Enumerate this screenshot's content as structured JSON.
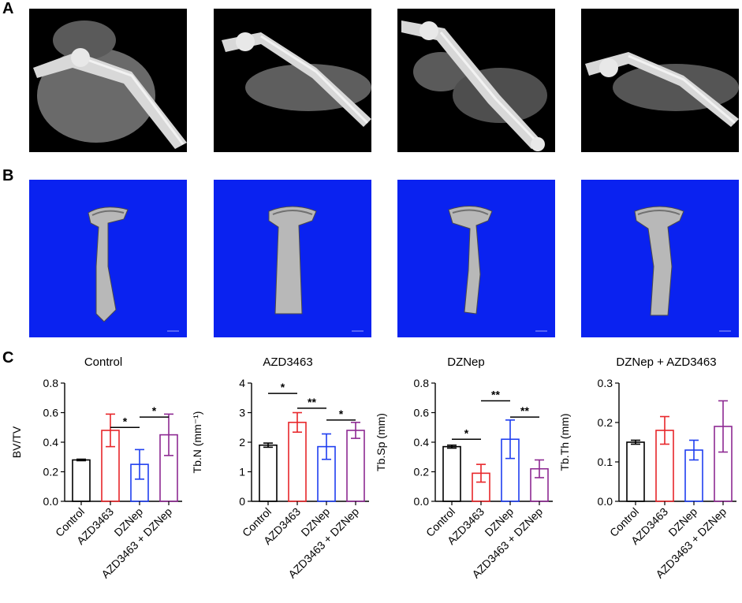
{
  "panels": {
    "a": "A",
    "b": "B",
    "c": "C"
  },
  "panel_a_images": [
    {
      "icon": "microct-radiograph-image"
    },
    {
      "icon": "microct-radiograph-image"
    },
    {
      "icon": "microct-radiograph-image"
    },
    {
      "icon": "microct-radiograph-image"
    }
  ],
  "panel_b_images": [
    {
      "icon": "bone-3d-reconstruction-image"
    },
    {
      "icon": "bone-3d-reconstruction-image"
    },
    {
      "icon": "bone-3d-reconstruction-image"
    },
    {
      "icon": "bone-3d-reconstruction-image"
    }
  ],
  "panel_c_titles": [
    "Control",
    "AZD3463",
    "DZNep",
    "DZNep + AZD3463"
  ],
  "colors": {
    "Control": "#000000",
    "AZD3463": "#e8262a",
    "DZNep": "#1f3ff0",
    "AZD3463 + DZNep": "#8e2a93",
    "ct_background": "#000000",
    "recon_background": "#0a22f0"
  },
  "chart_data": [
    {
      "type": "bar",
      "ylabel": "BV/TV",
      "ylim": [
        0,
        0.8
      ],
      "yticks": [
        "0.0",
        "0.2",
        "0.4",
        "0.6",
        "0.8"
      ],
      "categories": [
        "Control",
        "AZD3463",
        "DZNep",
        "AZD3463 + DZNep"
      ],
      "values": [
        0.28,
        0.48,
        0.25,
        0.45
      ],
      "errors": [
        0.005,
        0.11,
        0.1,
        0.14
      ],
      "significance": [
        {
          "from": 1,
          "to": 2,
          "label": "*",
          "y": 0.5
        },
        {
          "from": 2,
          "to": 3,
          "label": "*",
          "y": 0.57
        }
      ]
    },
    {
      "type": "bar",
      "ylabel": "Tb.N (mm⁻¹)",
      "ylim": [
        0,
        4
      ],
      "yticks": [
        "0",
        "1",
        "2",
        "3",
        "4"
      ],
      "categories": [
        "Control",
        "AZD3463",
        "DZNep",
        "AZD3463 + DZNep"
      ],
      "values": [
        1.9,
        2.67,
        1.85,
        2.4
      ],
      "errors": [
        0.07,
        0.33,
        0.43,
        0.27
      ],
      "significance": [
        {
          "from": 0,
          "to": 1,
          "label": "*",
          "y": 3.65
        },
        {
          "from": 1,
          "to": 2,
          "label": "**",
          "y": 3.15
        },
        {
          "from": 2,
          "to": 3,
          "label": "*",
          "y": 2.75
        }
      ]
    },
    {
      "type": "bar",
      "ylabel": "Tb.Sp (mm)",
      "ylim": [
        0,
        0.8
      ],
      "yticks": [
        "0.0",
        "0.2",
        "0.4",
        "0.6",
        "0.8"
      ],
      "categories": [
        "Control",
        "AZD3463",
        "DZNep",
        "AZD3463 + DZNep"
      ],
      "values": [
        0.37,
        0.19,
        0.42,
        0.22
      ],
      "errors": [
        0.01,
        0.06,
        0.13,
        0.06
      ],
      "significance": [
        {
          "from": 0,
          "to": 1,
          "label": "*",
          "y": 0.42
        },
        {
          "from": 1,
          "to": 2,
          "label": "**",
          "y": 0.68
        },
        {
          "from": 2,
          "to": 3,
          "label": "**",
          "y": 0.57
        }
      ]
    },
    {
      "type": "bar",
      "ylabel": "Tb.Th (mm)",
      "ylim": [
        0,
        0.3
      ],
      "yticks": [
        "0.0",
        "0.1",
        "0.2",
        "0.3"
      ],
      "categories": [
        "Control",
        "AZD3463",
        "DZNep",
        "AZD3463 + DZNep"
      ],
      "values": [
        0.15,
        0.18,
        0.13,
        0.19
      ],
      "errors": [
        0.005,
        0.035,
        0.025,
        0.065
      ],
      "significance": []
    }
  ]
}
